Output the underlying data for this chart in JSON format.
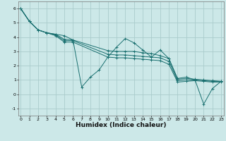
{
  "title": "",
  "xlabel": "Humidex (Indice chaleur)",
  "ylabel": "",
  "bg_color": "#cce8e8",
  "grid_color": "#aacccc",
  "line_color": "#1a7070",
  "lines": [
    {
      "x": [
        0,
        1,
        2,
        3,
        4,
        5,
        6,
        7,
        8,
        9,
        10,
        11,
        12,
        13,
        14,
        15,
        16,
        17,
        18,
        19,
        20,
        21,
        22,
        23
      ],
      "y": [
        6.0,
        5.1,
        4.5,
        4.3,
        4.2,
        4.1,
        3.8,
        0.5,
        1.2,
        1.7,
        2.6,
        3.3,
        3.9,
        3.6,
        3.1,
        2.6,
        3.1,
        2.5,
        1.1,
        1.2,
        1.0,
        -0.7,
        0.4,
        0.9
      ]
    },
    {
      "x": [
        0,
        1,
        2,
        3,
        4,
        5,
        6,
        10,
        11,
        12,
        13,
        14,
        15,
        16,
        17,
        18,
        19,
        20,
        21,
        22,
        23
      ],
      "y": [
        6.0,
        5.1,
        4.5,
        4.3,
        4.2,
        3.85,
        3.8,
        3.05,
        3.0,
        3.0,
        3.0,
        2.9,
        2.85,
        2.7,
        2.5,
        1.05,
        1.1,
        1.05,
        1.0,
        0.95,
        0.9
      ]
    },
    {
      "x": [
        0,
        1,
        2,
        3,
        4,
        5,
        6,
        10,
        11,
        12,
        13,
        14,
        15,
        16,
        17,
        18,
        19,
        20,
        21,
        22,
        23
      ],
      "y": [
        6.0,
        5.1,
        4.5,
        4.3,
        4.15,
        3.75,
        3.75,
        2.8,
        2.75,
        2.75,
        2.7,
        2.65,
        2.6,
        2.55,
        2.3,
        0.95,
        1.0,
        1.0,
        0.95,
        0.9,
        0.9
      ]
    },
    {
      "x": [
        0,
        1,
        2,
        3,
        4,
        5,
        6,
        10,
        11,
        12,
        13,
        14,
        15,
        16,
        17,
        18,
        19,
        20,
        21,
        22,
        23
      ],
      "y": [
        6.0,
        5.1,
        4.5,
        4.3,
        4.1,
        3.65,
        3.65,
        2.6,
        2.55,
        2.55,
        2.5,
        2.45,
        2.4,
        2.35,
        2.1,
        0.85,
        0.9,
        0.95,
        0.9,
        0.85,
        0.85
      ]
    }
  ],
  "xlim": [
    -0.3,
    23.3
  ],
  "ylim": [
    -1.5,
    6.5
  ],
  "xticks": [
    0,
    1,
    2,
    3,
    4,
    5,
    6,
    7,
    8,
    9,
    10,
    11,
    12,
    13,
    14,
    15,
    16,
    17,
    18,
    19,
    20,
    21,
    22,
    23
  ],
  "yticks": [
    -1,
    0,
    1,
    2,
    3,
    4,
    5,
    6
  ],
  "tick_fontsize": 4.5,
  "label_fontsize": 6.5
}
